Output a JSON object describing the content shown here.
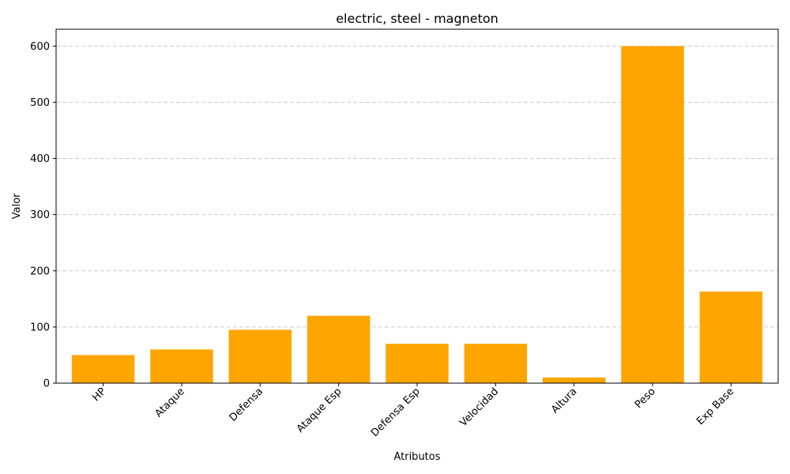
{
  "chart_data": {
    "type": "bar",
    "title": "electric, steel - magneton",
    "xlabel": "Atributos",
    "ylabel": "Valor",
    "categories": [
      "HP",
      "Ataque",
      "Defensa",
      "Ataque Esp",
      "Defensa Esp",
      "Velocidad",
      "Altura",
      "Peso",
      "Exp Base"
    ],
    "values": [
      50,
      60,
      95,
      120,
      70,
      70,
      10,
      600,
      163
    ],
    "ylim": [
      0,
      630
    ],
    "yticks": [
      0,
      100,
      200,
      300,
      400,
      500,
      600
    ],
    "grid": "y-dashed",
    "bar_color": "#FFA500",
    "x_tick_rotation": 45
  }
}
